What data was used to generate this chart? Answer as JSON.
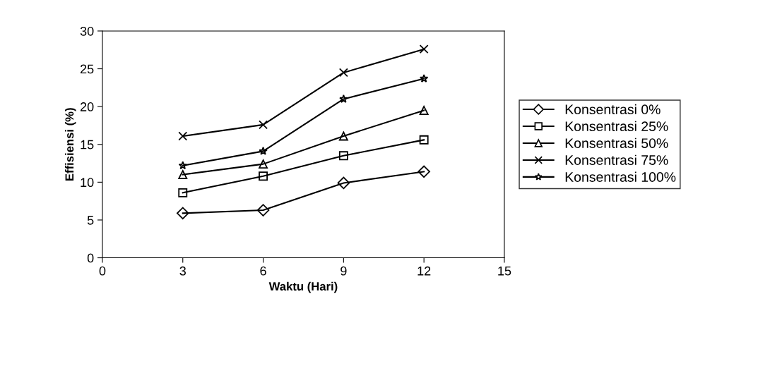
{
  "chart_data": {
    "type": "line",
    "xlabel": "Waktu (Hari)",
    "ylabel": "Effisiensi (%)",
    "x": [
      3,
      6,
      9,
      12
    ],
    "xlim": [
      0,
      15
    ],
    "xticks": [
      0,
      3,
      6,
      9,
      12,
      15
    ],
    "ylim": [
      0,
      30
    ],
    "yticks": [
      0,
      5,
      10,
      15,
      20,
      25,
      30
    ],
    "grid": false,
    "legend": "right",
    "line_style": "solid",
    "series": [
      {
        "name": "Konsentrasi 0%",
        "color": "#000000",
        "marker": "diamond",
        "values": [
          5.9,
          6.3,
          9.9,
          11.4
        ]
      },
      {
        "name": "Konsentrasi 25%",
        "color": "#000000",
        "marker": "square",
        "values": [
          8.6,
          10.8,
          13.5,
          15.6
        ]
      },
      {
        "name": "Konsentrasi 50%",
        "color": "#000000",
        "marker": "triangle",
        "values": [
          11.0,
          12.4,
          16.1,
          19.5
        ]
      },
      {
        "name": "Konsentrasi 75%",
        "color": "#000000",
        "marker": "cross",
        "values": [
          16.1,
          17.6,
          24.5,
          27.6
        ]
      },
      {
        "name": "Konsentrasi 100%",
        "color": "#000000",
        "marker": "star",
        "values": [
          12.2,
          14.1,
          21.0,
          23.7
        ]
      }
    ]
  }
}
